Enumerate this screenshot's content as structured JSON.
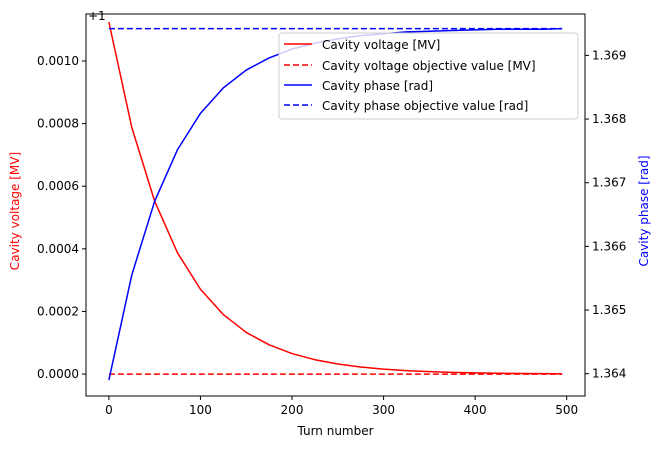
{
  "chart_data": {
    "type": "line",
    "xlabel": "Turn number",
    "ylabel_left": "Cavity voltage [MV]",
    "ylabel_right": "Cavity phase [rad]",
    "left_offset_label": "+1",
    "xlim": [
      -25,
      520
    ],
    "xticks": [
      0,
      100,
      200,
      300,
      400,
      500
    ],
    "ylim_left": [
      -7e-05,
      0.00115
    ],
    "yticks_left": [
      0.0,
      0.0002,
      0.0004,
      0.0006,
      0.0008,
      0.001
    ],
    "yticklabels_left": [
      "0.0000",
      "0.0002",
      "0.0004",
      "0.0006",
      "0.0008",
      "0.0010"
    ],
    "ylim_right": [
      1.36365,
      1.36965
    ],
    "yticks_right": [
      1.364,
      1.365,
      1.366,
      1.367,
      1.368,
      1.369
    ],
    "yticklabels_right": [
      "1.364",
      "1.365",
      "1.366",
      "1.367",
      "1.368",
      "1.369"
    ],
    "legend_position": "upper-right",
    "grid": false,
    "colors": {
      "voltage": "#ff0000",
      "phase": "#0000ff",
      "axis": "#000000"
    },
    "series": [
      {
        "name": "Cavity voltage [MV]",
        "axis": "left",
        "style": "solid",
        "color": "#ff0000",
        "x": [
          0,
          25,
          50,
          75,
          100,
          125,
          150,
          175,
          200,
          225,
          250,
          275,
          300,
          325,
          350,
          375,
          400,
          425,
          450,
          475,
          495
        ],
        "y": [
          0.001124,
          0.000788,
          0.000552,
          0.000387,
          0.000271,
          0.00019,
          0.000133,
          9.35e-05,
          6.55e-05,
          4.59e-05,
          3.22e-05,
          2.25e-05,
          1.58e-05,
          1.11e-05,
          7.8e-06,
          5.4e-06,
          3.8e-06,
          2.7e-06,
          1.9e-06,
          1.3e-06,
          1e-06
        ]
      },
      {
        "name": "Cavity voltage objective value [MV]",
        "axis": "left",
        "style": "dashed",
        "color": "#ff0000",
        "x": [
          0,
          495
        ],
        "y": [
          0.0,
          0.0
        ]
      },
      {
        "name": "Cavity phase [rad]",
        "axis": "right",
        "style": "solid",
        "color": "#0000ff",
        "x": [
          0,
          25,
          50,
          75,
          100,
          125,
          150,
          175,
          200,
          225,
          250,
          275,
          300,
          325,
          350,
          375,
          400,
          425,
          450,
          475,
          495
        ],
        "y": [
          1.3639,
          1.36555,
          1.36671,
          1.36752,
          1.36809,
          1.36849,
          1.36877,
          1.36896,
          1.3691,
          1.36919,
          1.36926,
          1.36931,
          1.36934,
          1.36937,
          1.36938,
          1.36939,
          1.3694,
          1.36941,
          1.36941,
          1.36941,
          1.36942
        ]
      },
      {
        "name": "Cavity phase objective value [rad]",
        "axis": "right",
        "style": "dashed",
        "color": "#0000ff",
        "x": [
          0,
          495
        ],
        "y": [
          1.36942,
          1.36942
        ]
      }
    ]
  }
}
